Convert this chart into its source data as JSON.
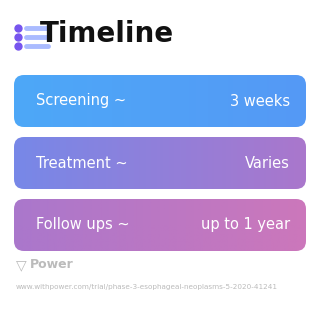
{
  "title": "Timeline",
  "title_fontsize": 20,
  "title_fontweight": "bold",
  "title_color": "#111111",
  "background_color": "#ffffff",
  "icon_color": "#7755ee",
  "icon_line_color": "#8888dd",
  "rows": [
    {
      "label": "Screening ~",
      "value": "3 weeks",
      "color_left": "#4da8f8",
      "color_right": "#5599f5"
    },
    {
      "label": "Treatment ~",
      "value": "Varies",
      "color_left": "#7788e8",
      "color_right": "#aa77cc"
    },
    {
      "label": "Follow ups ~",
      "value": "up to 1 year",
      "color_left": "#aa77cc",
      "color_right": "#cc77bb"
    }
  ],
  "label_fontsize": 10.5,
  "value_fontsize": 10.5,
  "text_color": "#ffffff",
  "footer_text": "Power",
  "footer_url": "www.withpower.com/trial/phase-3-esophageal-neoplasms-5-2020-41241",
  "footer_color": "#bbbbbb",
  "footer_fontsize": 5.2,
  "footer_text_fontsize": 9
}
